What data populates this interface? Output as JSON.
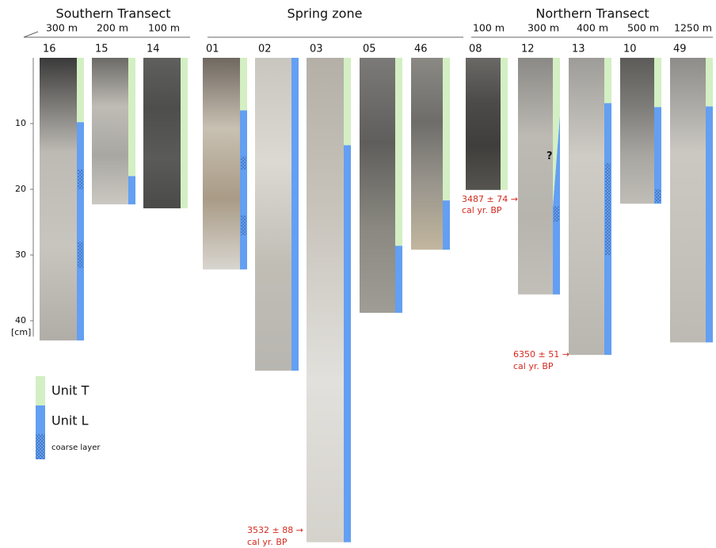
{
  "groups": [
    {
      "title": "Southern Transect",
      "distances": [
        "300 m",
        "200 m",
        "100 m"
      ]
    },
    {
      "title": "Spring zone"
    },
    {
      "title": "Northern Transect",
      "distances": [
        "100 m",
        "300 m",
        "400 m",
        "500 m",
        "1250 m"
      ]
    }
  ],
  "depth_axis": {
    "ticks": [
      10,
      20,
      30,
      40
    ],
    "unit": "[cm]"
  },
  "cores": [
    {
      "label": "16",
      "depth": 43,
      "units": [
        {
          "kind": "T",
          "from": 0,
          "to": 9.8
        },
        {
          "kind": "L",
          "from": 9.8,
          "to": 43
        }
      ],
      "coarse": [
        [
          17,
          20
        ],
        [
          28,
          32
        ]
      ]
    },
    {
      "label": "15",
      "depth": 22.3,
      "units": [
        {
          "kind": "T",
          "from": 0,
          "to": 18
        },
        {
          "kind": "L",
          "from": 18,
          "to": 22.3
        }
      ],
      "coarse": []
    },
    {
      "label": "14",
      "depth": 22.9,
      "units": [
        {
          "kind": "T",
          "from": 0,
          "to": 22.9
        }
      ],
      "coarse": []
    },
    {
      "label": "01",
      "depth": 32.2,
      "units": [
        {
          "kind": "T",
          "from": 0,
          "to": 8
        },
        {
          "kind": "L",
          "from": 8,
          "to": 32.2
        }
      ],
      "coarse": [
        [
          15,
          17
        ],
        [
          24,
          27
        ]
      ]
    },
    {
      "label": "02",
      "depth": 47.6,
      "units": [
        {
          "kind": "L",
          "from": 0,
          "to": 47.6
        }
      ],
      "coarse": []
    },
    {
      "label": "03",
      "depth": 73.7,
      "units": [
        {
          "kind": "T",
          "from": 0,
          "to": 13.3
        },
        {
          "kind": "L",
          "from": 13.3,
          "to": 73.7
        }
      ],
      "coarse": []
    },
    {
      "label": "05",
      "depth": 38.8,
      "units": [
        {
          "kind": "T",
          "from": 0,
          "to": 28.6
        },
        {
          "kind": "L",
          "from": 28.6,
          "to": 38.8
        }
      ],
      "coarse": []
    },
    {
      "label": "46",
      "depth": 29.2,
      "units": [
        {
          "kind": "T",
          "from": 0,
          "to": 21.7
        },
        {
          "kind": "L",
          "from": 21.7,
          "to": 29.2
        }
      ],
      "coarse": []
    },
    {
      "label": "08",
      "depth": 20.1,
      "units": [
        {
          "kind": "T",
          "from": 0,
          "to": 20.1
        }
      ],
      "coarse": []
    },
    {
      "label": "12",
      "depth": 36,
      "units": [
        {
          "kind": "T",
          "from": 0,
          "to": 8.7
        },
        {
          "kind": "TL",
          "from": 8.7,
          "to": 22.6
        },
        {
          "kind": "L",
          "from": 22.6,
          "to": 36
        }
      ],
      "coarse": [
        [
          22.6,
          25
        ]
      ],
      "note": "?"
    },
    {
      "label": "13",
      "depth": 45.2,
      "units": [
        {
          "kind": "T",
          "from": 0,
          "to": 6.9
        },
        {
          "kind": "L",
          "from": 6.9,
          "to": 45.2
        }
      ],
      "coarse": [
        [
          16,
          30
        ]
      ]
    },
    {
      "label": "10",
      "depth": 22.2,
      "units": [
        {
          "kind": "T",
          "from": 0,
          "to": 7.5
        },
        {
          "kind": "L",
          "from": 7.5,
          "to": 22.2
        }
      ],
      "coarse": [
        [
          20,
          22
        ]
      ]
    },
    {
      "label": "49",
      "depth": 43.3,
      "units": [
        {
          "kind": "T",
          "from": 0,
          "to": 7.4
        },
        {
          "kind": "L",
          "from": 7.4,
          "to": 43.3
        }
      ],
      "coarse": []
    }
  ],
  "dates": [
    {
      "age": "3487 ± 74 →",
      "unit": "cal yr. BP"
    },
    {
      "age": "6350 ± 51 →",
      "unit": "cal yr. BP"
    },
    {
      "age": "3532 ± 88 →",
      "unit": "cal yr. BP"
    }
  ],
  "legend": {
    "t": "Unit T",
    "l": "Unit L",
    "coarse": "coarse layer"
  }
}
